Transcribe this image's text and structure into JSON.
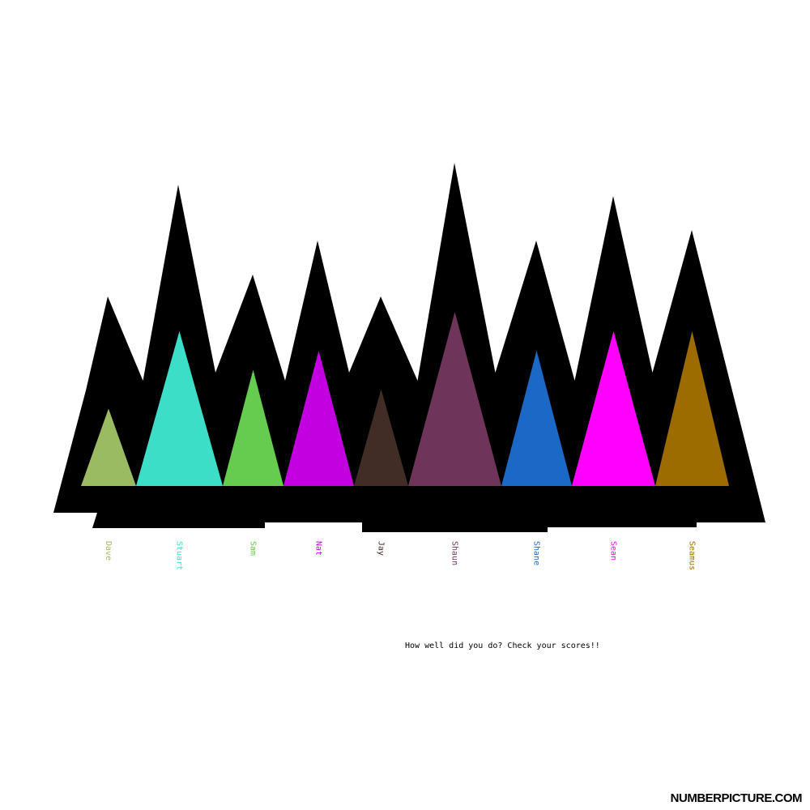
{
  "chart_data": {
    "type": "bar",
    "categories": [
      "Dave",
      "Stuart",
      "Sam",
      "Nat",
      "Jay",
      "Shaun",
      "Shane",
      "Sean",
      "Seamus"
    ],
    "values": [
      4,
      8,
      6,
      7,
      5,
      9,
      7,
      8,
      8
    ],
    "ylim": [
      0,
      9
    ],
    "colors": [
      "#9BBB63",
      "#3CDEC8",
      "#66CC4F",
      "#C200E0",
      "#412D25",
      "#6E345A",
      "#1B68C7",
      "#FF00FF",
      "#9C6C00"
    ],
    "background": "#000000",
    "caption": "How well did you do? Check your scores!!"
  },
  "brand": "NUMBERPICTURE.COM"
}
